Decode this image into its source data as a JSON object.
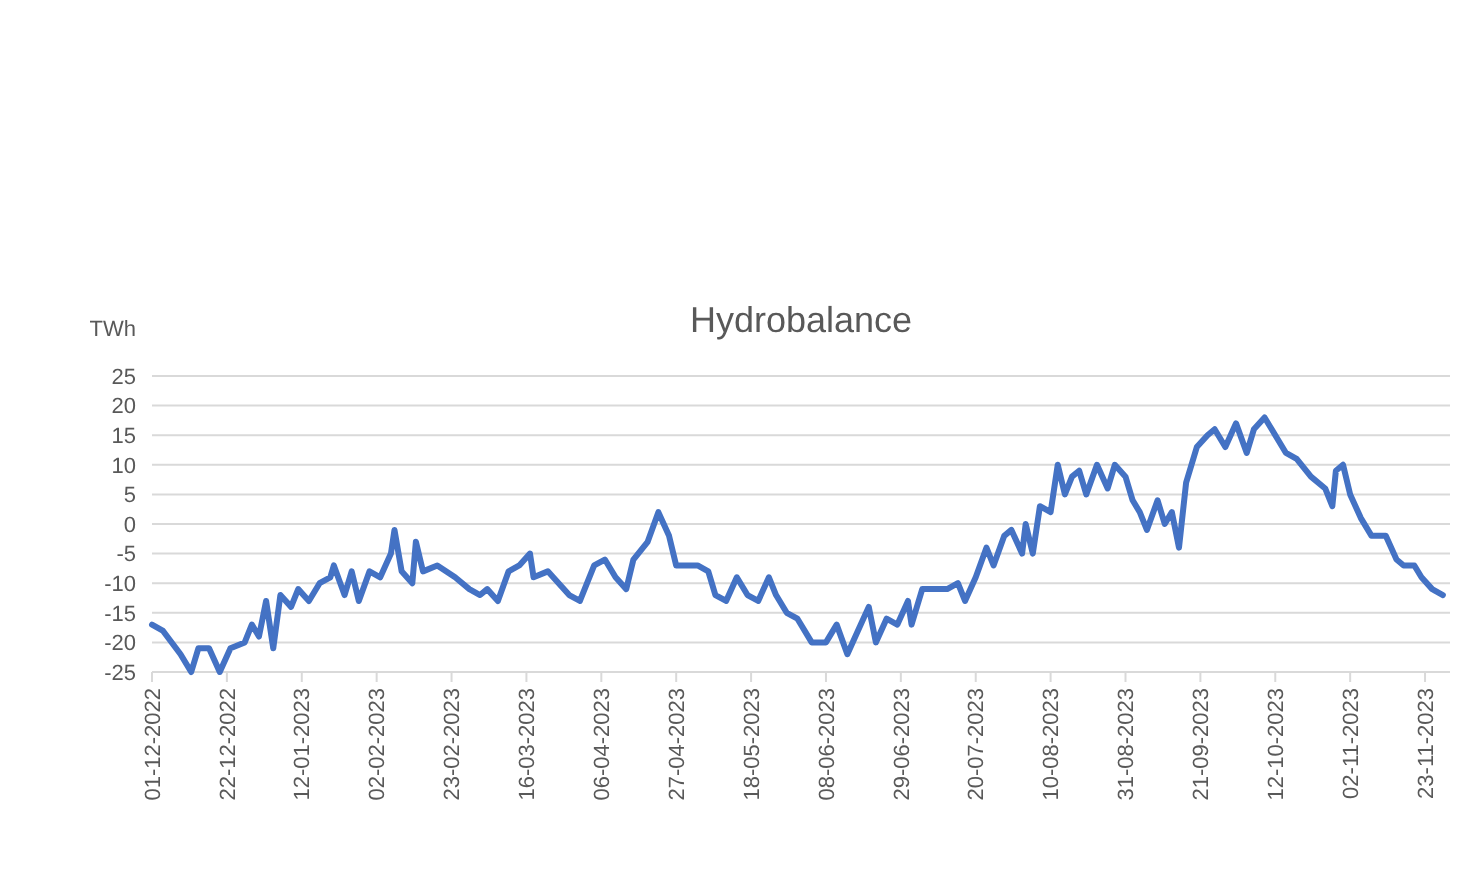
{
  "chart_data": {
    "type": "line",
    "title": "Hydrobalance",
    "ylabel": "TWh",
    "x": [
      "2022-12-01",
      "2022-12-04",
      "2022-12-09",
      "2022-12-12",
      "2022-12-14",
      "2022-12-17",
      "2022-12-20",
      "2022-12-23",
      "2022-12-27",
      "2022-12-29",
      "2022-12-31",
      "2023-01-02",
      "2023-01-04",
      "2023-01-06",
      "2023-01-09",
      "2023-01-11",
      "2023-01-14",
      "2023-01-17",
      "2023-01-20",
      "2023-01-21",
      "2023-01-24",
      "2023-01-26",
      "2023-01-28",
      "2023-01-31",
      "2023-02-03",
      "2023-02-06",
      "2023-02-07",
      "2023-02-09",
      "2023-02-12",
      "2023-02-13",
      "2023-02-15",
      "2023-02-19",
      "2023-02-24",
      "2023-02-28",
      "2023-03-03",
      "2023-03-05",
      "2023-03-08",
      "2023-03-11",
      "2023-03-14",
      "2023-03-17",
      "2023-03-18",
      "2023-03-22",
      "2023-03-28",
      "2023-03-31",
      "2023-04-04",
      "2023-04-07",
      "2023-04-10",
      "2023-04-13",
      "2023-04-15",
      "2023-04-19",
      "2023-04-22",
      "2023-04-25",
      "2023-04-27",
      "2023-05-03",
      "2023-05-06",
      "2023-05-08",
      "2023-05-11",
      "2023-05-14",
      "2023-05-17",
      "2023-05-20",
      "2023-05-23",
      "2023-05-25",
      "2023-05-28",
      "2023-05-31",
      "2023-06-04",
      "2023-06-08",
      "2023-06-11",
      "2023-06-14",
      "2023-06-17",
      "2023-06-20",
      "2023-06-22",
      "2023-06-25",
      "2023-06-28",
      "2023-07-01",
      "2023-07-02",
      "2023-07-05",
      "2023-07-08",
      "2023-07-12",
      "2023-07-15",
      "2023-07-17",
      "2023-07-20",
      "2023-07-23",
      "2023-07-25",
      "2023-07-28",
      "2023-07-30",
      "2023-08-02",
      "2023-08-03",
      "2023-08-05",
      "2023-08-07",
      "2023-08-10",
      "2023-08-12",
      "2023-08-14",
      "2023-08-16",
      "2023-08-18",
      "2023-08-20",
      "2023-08-23",
      "2023-08-26",
      "2023-08-28",
      "2023-08-31",
      "2023-09-02",
      "2023-09-04",
      "2023-09-06",
      "2023-09-09",
      "2023-09-11",
      "2023-09-13",
      "2023-09-15",
      "2023-09-17",
      "2023-09-20",
      "2023-09-23",
      "2023-09-25",
      "2023-09-28",
      "2023-10-01",
      "2023-10-04",
      "2023-10-06",
      "2023-10-09",
      "2023-10-11",
      "2023-10-15",
      "2023-10-18",
      "2023-10-22",
      "2023-10-26",
      "2023-10-28",
      "2023-10-29",
      "2023-10-31",
      "2023-11-02",
      "2023-11-05",
      "2023-11-08",
      "2023-11-12",
      "2023-11-15",
      "2023-11-17",
      "2023-11-20",
      "2023-11-22",
      "2023-11-25",
      "2023-11-28"
    ],
    "series": [
      {
        "color": "#4472c4",
        "values": [
          -17,
          -18,
          -22,
          -25,
          -21,
          -21,
          -25,
          -21,
          -20,
          -17,
          -19,
          -13,
          -21,
          -12,
          -14,
          -11,
          -13,
          -10,
          -9,
          -7,
          -12,
          -8,
          -13,
          -8,
          -9,
          -5,
          -1,
          -8,
          -10,
          -3,
          -8,
          -7,
          -9,
          -11,
          -12,
          -11,
          -13,
          -8,
          -7,
          -5,
          -9,
          -8,
          -12,
          -13,
          -7,
          -6,
          -9,
          -11,
          -6,
          -3,
          2,
          -2,
          -7,
          -7,
          -8,
          -12,
          -13,
          -9,
          -12,
          -13,
          -9,
          -12,
          -15,
          -16,
          -20,
          -20,
          -17,
          -22,
          -18,
          -14,
          -20,
          -16,
          -17,
          -13,
          -17,
          -11,
          -11,
          -11,
          -10,
          -13,
          -9,
          -4,
          -7,
          -2,
          -1,
          -5,
          0,
          -5,
          3,
          2,
          10,
          5,
          8,
          9,
          5,
          10,
          6,
          10,
          8,
          4,
          2,
          -1,
          4,
          0,
          2,
          -4,
          7,
          13,
          15,
          16,
          13,
          17,
          12,
          16,
          18,
          16,
          12,
          11,
          8,
          6,
          3,
          9,
          10,
          5,
          1,
          -2,
          -2,
          -6,
          -7,
          -7,
          -9,
          -11,
          -12
        ]
      }
    ],
    "xlim": [
      "2022-12-01",
      "2023-11-30"
    ],
    "xticks": [
      {
        "value": "2022-12-01",
        "label": "01-12-2022"
      },
      {
        "value": "2022-12-22",
        "label": "22-12-2022"
      },
      {
        "value": "2023-01-12",
        "label": "12-01-2023"
      },
      {
        "value": "2023-02-02",
        "label": "02-02-2023"
      },
      {
        "value": "2023-02-23",
        "label": "23-02-2023"
      },
      {
        "value": "2023-03-16",
        "label": "16-03-2023"
      },
      {
        "value": "2023-04-06",
        "label": "06-04-2023"
      },
      {
        "value": "2023-04-27",
        "label": "27-04-2023"
      },
      {
        "value": "2023-05-18",
        "label": "18-05-2023"
      },
      {
        "value": "2023-06-08",
        "label": "08-06-2023"
      },
      {
        "value": "2023-06-29",
        "label": "29-06-2023"
      },
      {
        "value": "2023-07-20",
        "label": "20-07-2023"
      },
      {
        "value": "2023-08-10",
        "label": "10-08-2023"
      },
      {
        "value": "2023-08-31",
        "label": "31-08-2023"
      },
      {
        "value": "2023-09-21",
        "label": "21-09-2023"
      },
      {
        "value": "2023-10-12",
        "label": "12-10-2023"
      },
      {
        "value": "2023-11-02",
        "label": "02-11-2023"
      },
      {
        "value": "2023-11-23",
        "label": "23-11-2023"
      }
    ],
    "ylim": [
      -25,
      25
    ],
    "yticks": [
      -25,
      -20,
      -15,
      -10,
      -5,
      0,
      5,
      10,
      15,
      20,
      25
    ],
    "grid": "y",
    "marker": "none",
    "line_style": "solid"
  }
}
